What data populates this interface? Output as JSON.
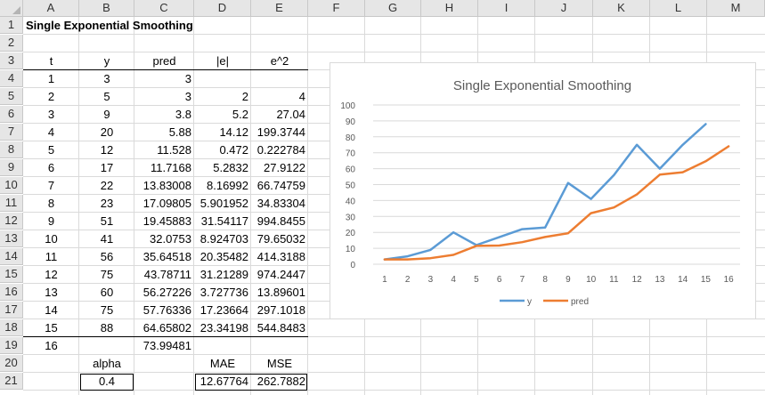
{
  "columns": [
    "A",
    "B",
    "C",
    "D",
    "E",
    "F",
    "G",
    "H",
    "I",
    "J",
    "K",
    "L",
    "M"
  ],
  "rows": [
    "1",
    "2",
    "3",
    "4",
    "5",
    "6",
    "7",
    "8",
    "9",
    "10",
    "11",
    "12",
    "13",
    "14",
    "15",
    "16",
    "17",
    "18",
    "19",
    "20",
    "21"
  ],
  "sheet_title": "Single Exponential Smoothing",
  "table": {
    "headers": [
      "t",
      "y",
      "pred",
      "|e|",
      "e^2"
    ],
    "rows": [
      [
        "1",
        "3",
        "3",
        "",
        ""
      ],
      [
        "2",
        "5",
        "3",
        "2",
        "4"
      ],
      [
        "3",
        "9",
        "3.8",
        "5.2",
        "27.04"
      ],
      [
        "4",
        "20",
        "5.88",
        "14.12",
        "199.3744"
      ],
      [
        "5",
        "12",
        "11.528",
        "0.472",
        "0.222784"
      ],
      [
        "6",
        "17",
        "11.7168",
        "5.2832",
        "27.9122"
      ],
      [
        "7",
        "22",
        "13.83008",
        "8.16992",
        "66.74759"
      ],
      [
        "8",
        "23",
        "17.09805",
        "5.901952",
        "34.83304"
      ],
      [
        "9",
        "51",
        "19.45883",
        "31.54117",
        "994.8455"
      ],
      [
        "10",
        "41",
        "32.0753",
        "8.924703",
        "79.65032"
      ],
      [
        "11",
        "56",
        "35.64518",
        "20.35482",
        "414.3188"
      ],
      [
        "12",
        "75",
        "43.78711",
        "31.21289",
        "974.2447"
      ],
      [
        "13",
        "60",
        "56.27226",
        "3.727736",
        "13.89601"
      ],
      [
        "14",
        "75",
        "57.76336",
        "17.23664",
        "297.1018"
      ],
      [
        "15",
        "88",
        "64.65802",
        "23.34198",
        "544.8483"
      ],
      [
        "16",
        "",
        "73.99481",
        "",
        ""
      ]
    ]
  },
  "alpha_label": "alpha",
  "alpha_value": "0.4",
  "mae_label": "MAE",
  "mae_value": "12.67764",
  "mse_label": "MSE",
  "mse_value": "262.7882",
  "chart_data": {
    "type": "line",
    "title": "Single Exponential Smoothing",
    "categories": [
      "1",
      "2",
      "3",
      "4",
      "5",
      "6",
      "7",
      "8",
      "9",
      "10",
      "11",
      "12",
      "13",
      "14",
      "15",
      "16"
    ],
    "series": [
      {
        "name": "y",
        "color": "#5b9bd5",
        "values": [
          3,
          5,
          9,
          20,
          12,
          17,
          22,
          23,
          51,
          41,
          56,
          75,
          60,
          75,
          88,
          null
        ]
      },
      {
        "name": "pred",
        "color": "#ed7d31",
        "values": [
          3,
          3,
          3.8,
          5.88,
          11.528,
          11.7168,
          13.83008,
          17.09805,
          19.45883,
          32.0753,
          35.64518,
          43.78711,
          56.27226,
          57.76336,
          64.65802,
          73.99481
        ]
      }
    ],
    "ylim": [
      0,
      100
    ],
    "yticks": [
      "0",
      "10",
      "20",
      "30",
      "40",
      "50",
      "60",
      "70",
      "80",
      "90",
      "100"
    ],
    "grid": true,
    "legend": "bottom"
  }
}
